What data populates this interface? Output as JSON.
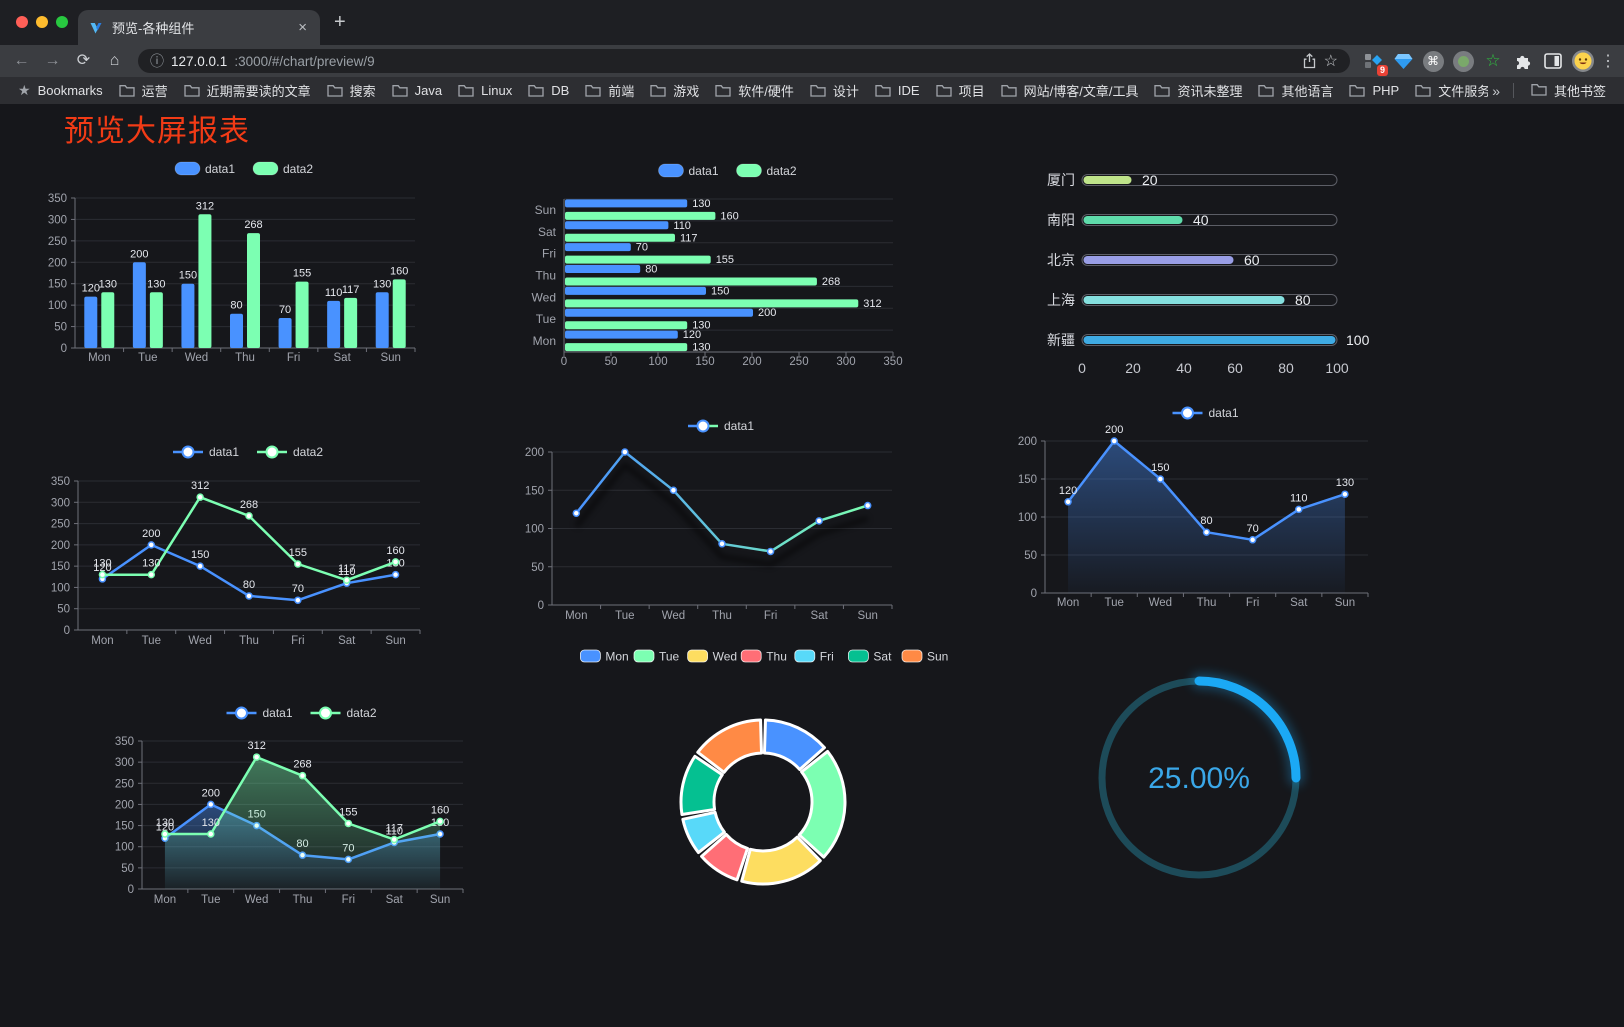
{
  "browser": {
    "tab": {
      "title": "预览-各种组件"
    },
    "url": {
      "host": "127.0.0.1",
      "rest": ":3000/#/chart/preview/9"
    },
    "bookmarks_label": "Bookmarks",
    "bookmarks": [
      "运营",
      "近期需要读的文章",
      "搜索",
      "Java",
      "Linux",
      "DB",
      "前端",
      "游戏",
      "软件/硬件",
      "设计",
      "IDE",
      "项目",
      "网站/博客/文章/工具",
      "资讯未整理",
      "其他语言",
      "PHP",
      "文件服务器"
    ],
    "other_bookmarks": "其他书签",
    "extension_badge": "9",
    "icons": {
      "close": "×",
      "new_tab": "+",
      "back": "←",
      "forward": "→",
      "reload": "⟳",
      "home": "⌂",
      "info": "ⓘ",
      "star": "☆",
      "menu": "⋮",
      "bookmarks_star": "★",
      "overflow": "»",
      "command": "⌘"
    }
  },
  "page": {
    "title": "预览大屏报表",
    "title_color": "#f23b16"
  },
  "theme": {
    "background": "#16171b",
    "axis_label": "#a1a4ad",
    "value_label": "#e6e8ee",
    "grid_line": "#2b2d33",
    "axis_line": "#6e7079",
    "legend_text": "#d4d6db"
  },
  "chart_data": [
    {
      "id": "bar-vertical",
      "type": "bar",
      "categories": [
        "Mon",
        "Tue",
        "Wed",
        "Thu",
        "Fri",
        "Sat",
        "Sun"
      ],
      "series": [
        {
          "name": "data1",
          "color": "#4992ff",
          "values": [
            120,
            200,
            150,
            80,
            70,
            110,
            130
          ]
        },
        {
          "name": "data2",
          "color": "#7cffb2",
          "values": [
            130,
            130,
            312,
            268,
            155,
            117,
            160
          ]
        }
      ],
      "ylim": [
        0,
        350
      ],
      "ytick_step": 50,
      "grid": true,
      "legend_position": "top",
      "show_labels": true
    },
    {
      "id": "bar-horizontal",
      "type": "bar",
      "orientation": "horizontal",
      "categories": [
        "Mon",
        "Tue",
        "Wed",
        "Thu",
        "Fri",
        "Sat",
        "Sun"
      ],
      "series": [
        {
          "name": "data1",
          "color": "#4992ff",
          "values": [
            120,
            200,
            150,
            80,
            70,
            110,
            130
          ]
        },
        {
          "name": "data2",
          "color": "#7cffb2",
          "values": [
            130,
            130,
            312,
            268,
            155,
            117,
            160
          ]
        }
      ],
      "xlim": [
        0,
        350
      ],
      "xtick_step": 50,
      "grid": true,
      "legend_position": "top",
      "show_labels": true
    },
    {
      "id": "progress-bars",
      "type": "bar",
      "orientation": "horizontal-progress",
      "categories": [
        "厦门",
        "南阳",
        "北京",
        "上海",
        "新疆"
      ],
      "values": [
        20,
        40,
        60,
        80,
        100
      ],
      "colors": [
        "#bfe48a",
        "#5fdcab",
        "#999ee6",
        "#85e0df",
        "#3fabe4"
      ],
      "xlim": [
        0,
        100
      ],
      "xticks": [
        0,
        20,
        40,
        60,
        80,
        100
      ]
    },
    {
      "id": "line-two",
      "type": "line",
      "categories": [
        "Mon",
        "Tue",
        "Wed",
        "Thu",
        "Fri",
        "Sat",
        "Sun"
      ],
      "series": [
        {
          "name": "data1",
          "color": "#4992ff",
          "values": [
            120,
            200,
            150,
            80,
            70,
            110,
            130
          ]
        },
        {
          "name": "data2",
          "color": "#7cffb2",
          "values": [
            130,
            130,
            312,
            268,
            155,
            117,
            160
          ]
        }
      ],
      "ylim": [
        0,
        350
      ],
      "ytick_step": 50,
      "show_labels": true,
      "legend_position": "top"
    },
    {
      "id": "line-gradient",
      "type": "line",
      "categories": [
        "Mon",
        "Tue",
        "Wed",
        "Thu",
        "Fri",
        "Sat",
        "Sun"
      ],
      "series": [
        {
          "name": "data1",
          "gradient": [
            "#4992ff",
            "#7cffb2"
          ],
          "color": "#4992ff",
          "values": [
            120,
            200,
            150,
            80,
            70,
            110,
            130
          ]
        }
      ],
      "ylim": [
        0,
        200
      ],
      "ytick_step": 50,
      "show_labels": false,
      "shadow": true,
      "legend_position": "top"
    },
    {
      "id": "line-area",
      "type": "area",
      "categories": [
        "Mon",
        "Tue",
        "Wed",
        "Thu",
        "Fri",
        "Sat",
        "Sun"
      ],
      "series": [
        {
          "name": "data1",
          "color": "#4992ff",
          "area": true,
          "values": [
            120,
            200,
            150,
            80,
            70,
            110,
            130
          ]
        }
      ],
      "ylim": [
        0,
        200
      ],
      "ytick_step": 50,
      "show_labels": true,
      "legend_position": "top"
    },
    {
      "id": "line-area-two",
      "type": "area",
      "categories": [
        "Mon",
        "Tue",
        "Wed",
        "Thu",
        "Fri",
        "Sat",
        "Sun"
      ],
      "series": [
        {
          "name": "data1",
          "color": "#4992ff",
          "area": true,
          "values": [
            120,
            200,
            150,
            80,
            70,
            110,
            130
          ]
        },
        {
          "name": "data2",
          "color": "#7cffb2",
          "area": true,
          "values": [
            130,
            130,
            312,
            268,
            155,
            117,
            160
          ]
        }
      ],
      "ylim": [
        0,
        350
      ],
      "ytick_step": 50,
      "show_labels": true,
      "legend_position": "top"
    },
    {
      "id": "donut",
      "type": "pie",
      "labels": [
        "Mon",
        "Tue",
        "Wed",
        "Thu",
        "Fri",
        "Sat",
        "Sun"
      ],
      "values": [
        120,
        200,
        150,
        80,
        70,
        110,
        130
      ],
      "colors": [
        "#4992ff",
        "#7cffb2",
        "#fddd60",
        "#ff6e76",
        "#58d9f9",
        "#05c091",
        "#ff8a45"
      ],
      "inner_radius_ratio": 0.6,
      "legend_position": "top"
    },
    {
      "id": "gauge",
      "type": "gauge",
      "value": 25,
      "max": 100,
      "display": "25.00%",
      "color": "#1ba9f5",
      "track_color": "#1d4b59",
      "text_color": "#3aa7e8"
    }
  ]
}
